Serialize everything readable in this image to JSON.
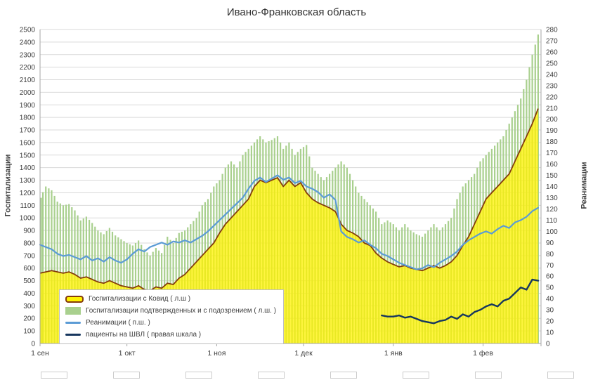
{
  "title": "Ивано-Франковская область",
  "left_axis_title": "Госпитализации",
  "right_axis_title": "Реанимации",
  "chart_data": {
    "type": "combo: bar + area + line",
    "x_axis": {
      "unit": "days since Sep 1",
      "tick_days": [
        0,
        30,
        61,
        91,
        122,
        153
      ],
      "tick_labels": [
        "1 сен",
        "1 окт",
        "1 ноя",
        "1 дек",
        "1 янв",
        "1 фев"
      ],
      "max_day": 173
    },
    "left_axis": {
      "min": 0,
      "max": 2500,
      "step": 100
    },
    "right_axis": {
      "min": 0,
      "max": 280,
      "step": 10
    },
    "grid": "horizontal",
    "legend_position": "bottom-left-inside",
    "days": [
      0,
      2,
      4,
      6,
      8,
      10,
      12,
      14,
      16,
      18,
      20,
      22,
      24,
      26,
      28,
      30,
      32,
      34,
      36,
      38,
      40,
      42,
      44,
      46,
      48,
      50,
      52,
      54,
      56,
      58,
      60,
      62,
      64,
      66,
      68,
      70,
      72,
      74,
      76,
      78,
      80,
      82,
      84,
      86,
      88,
      90,
      92,
      94,
      96,
      98,
      100,
      102,
      104,
      106,
      108,
      110,
      112,
      114,
      116,
      118,
      120,
      122,
      124,
      126,
      128,
      130,
      132,
      134,
      136,
      138,
      140,
      142,
      144,
      146,
      148,
      150,
      152,
      154,
      156,
      158,
      160,
      162,
      164,
      166,
      168,
      170,
      172
    ],
    "series": [
      {
        "id": "covid",
        "name": "Госпитализации с Ковид ( л.ш )",
        "type": "area-line",
        "axis": "left",
        "line_color": "#843c0c",
        "fill_color": "#fff200",
        "values": [
          560,
          570,
          580,
          570,
          560,
          570,
          550,
          520,
          530,
          510,
          490,
          480,
          500,
          480,
          460,
          450,
          440,
          460,
          430,
          420,
          450,
          440,
          480,
          470,
          520,
          550,
          600,
          650,
          700,
          750,
          800,
          880,
          950,
          1000,
          1050,
          1100,
          1150,
          1250,
          1300,
          1280,
          1300,
          1320,
          1250,
          1300,
          1250,
          1280,
          1200,
          1150,
          1120,
          1100,
          1080,
          1050,
          950,
          900,
          880,
          850,
          800,
          780,
          720,
          680,
          650,
          630,
          610,
          620,
          600,
          590,
          580,
          600,
          620,
          600,
          620,
          650,
          700,
          780,
          850,
          950,
          1050,
          1150,
          1200,
          1250,
          1300,
          1350,
          1450,
          1550,
          1650,
          1750,
          1870
        ]
      },
      {
        "id": "total",
        "name": "Госпитализации подтвержденных и с подозрением ( л.ш. )",
        "type": "bar",
        "axis": "left",
        "color": "#a9d08e",
        "values": [
          1160,
          1250,
          1220,
          1130,
          1100,
          1110,
          1060,
          980,
          1010,
          960,
          900,
          870,
          920,
          860,
          830,
          800,
          780,
          820,
          750,
          700,
          760,
          720,
          850,
          800,
          880,
          900,
          950,
          1000,
          1100,
          1150,
          1250,
          1300,
          1400,
          1450,
          1400,
          1500,
          1550,
          1600,
          1650,
          1600,
          1620,
          1650,
          1550,
          1600,
          1500,
          1550,
          1580,
          1400,
          1350,
          1300,
          1350,
          1400,
          1450,
          1400,
          1300,
          1200,
          1150,
          1100,
          1050,
          950,
          980,
          950,
          900,
          950,
          900,
          870,
          850,
          900,
          950,
          900,
          950,
          1000,
          1150,
          1250,
          1300,
          1350,
          1450,
          1500,
          1550,
          1600,
          1650,
          1750,
          1850,
          1950,
          2100,
          2300,
          2460
        ]
      },
      {
        "id": "icu",
        "name": "Реанимации ( п.ш. )",
        "type": "line",
        "axis": "right",
        "color": "#5b9bd5",
        "values": [
          88,
          86,
          84,
          80,
          78,
          79,
          77,
          75,
          78,
          74,
          76,
          73,
          77,
          74,
          72,
          75,
          80,
          84,
          82,
          86,
          88,
          90,
          88,
          91,
          90,
          92,
          90,
          93,
          96,
          100,
          105,
          110,
          115,
          120,
          125,
          130,
          138,
          145,
          148,
          144,
          147,
          150,
          146,
          148,
          143,
          145,
          140,
          138,
          135,
          130,
          133,
          128,
          100,
          95,
          93,
          90,
          92,
          88,
          85,
          80,
          78,
          75,
          72,
          70,
          68,
          66,
          67,
          70,
          68,
          72,
          75,
          78,
          82,
          88,
          92,
          95,
          98,
          100,
          98,
          102,
          105,
          103,
          108,
          110,
          113,
          118,
          121
        ]
      },
      {
        "id": "vent",
        "name": "пациенты на ШВЛ ( правая шкала )",
        "type": "line",
        "axis": "right",
        "color": "#17375e",
        "values": [
          null,
          null,
          null,
          null,
          null,
          null,
          null,
          null,
          null,
          null,
          null,
          null,
          null,
          null,
          null,
          null,
          null,
          null,
          null,
          null,
          null,
          null,
          null,
          null,
          null,
          null,
          null,
          null,
          null,
          null,
          null,
          null,
          null,
          null,
          null,
          null,
          null,
          null,
          null,
          null,
          null,
          null,
          null,
          null,
          null,
          null,
          null,
          null,
          null,
          null,
          null,
          null,
          null,
          null,
          null,
          null,
          null,
          null,
          null,
          25,
          24,
          24,
          25,
          23,
          24,
          22,
          20,
          19,
          18,
          20,
          21,
          24,
          22,
          26,
          24,
          28,
          30,
          33,
          35,
          33,
          38,
          40,
          45,
          50,
          48,
          57,
          56
        ]
      }
    ]
  },
  "colors": {
    "grid": "#d9d9d9",
    "axis": "#a6a6a6",
    "text": "#404040"
  }
}
